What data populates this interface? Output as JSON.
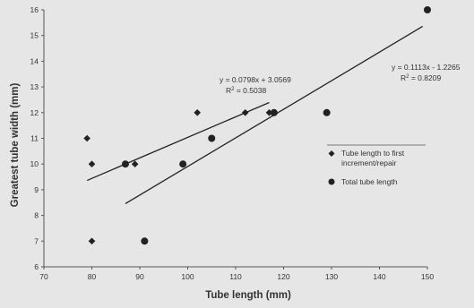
{
  "chart_data": {
    "type": "scatter",
    "title": "",
    "xlabel": "Tube length (mm)",
    "ylabel": "Greatest tube width (mm)",
    "xlim": [
      70,
      150
    ],
    "ylim": [
      6,
      16
    ],
    "xticks": [
      "70",
      "80",
      "90",
      "100",
      "110",
      "120",
      "130",
      "140",
      "150"
    ],
    "yticks": [
      "6",
      "7",
      "8",
      "9",
      "10",
      "11",
      "12",
      "13",
      "14",
      "15",
      "16"
    ],
    "grid": false,
    "legend_position": "right",
    "series": [
      {
        "name": "Tube length to first increment/repair",
        "legend_lines": [
          "Tube length to first",
          "increment/repair"
        ],
        "marker": "diamond",
        "color": "#222222",
        "points": [
          [
            79,
            11
          ],
          [
            80,
            10
          ],
          [
            80,
            7
          ],
          [
            89,
            10
          ],
          [
            102,
            12
          ],
          [
            112,
            12
          ],
          [
            117,
            12
          ]
        ],
        "trendline": {
          "x_range": [
            79,
            117
          ],
          "slope": 0.0798,
          "intercept": 3.0569,
          "equation": "y = 0.0798x + 3.0569",
          "r2_label": "R",
          "r2_exp": "2",
          "r2_value": " = 0.5038"
        }
      },
      {
        "name": "Total tube length",
        "legend_lines": [
          "Total tube length"
        ],
        "marker": "circle",
        "color": "#222222",
        "points": [
          [
            87,
            10
          ],
          [
            91,
            7
          ],
          [
            99,
            10
          ],
          [
            105,
            11
          ],
          [
            118,
            12
          ],
          [
            129,
            12
          ],
          [
            150,
            16
          ]
        ],
        "trendline": {
          "x_range": [
            87,
            149
          ],
          "slope": 0.1113,
          "intercept": -1.2265,
          "equation": "y = 0.1113x - 1.2265",
          "r2_label": "R",
          "r2_exp": "2",
          "r2_value": " = 0.8209"
        }
      }
    ]
  }
}
